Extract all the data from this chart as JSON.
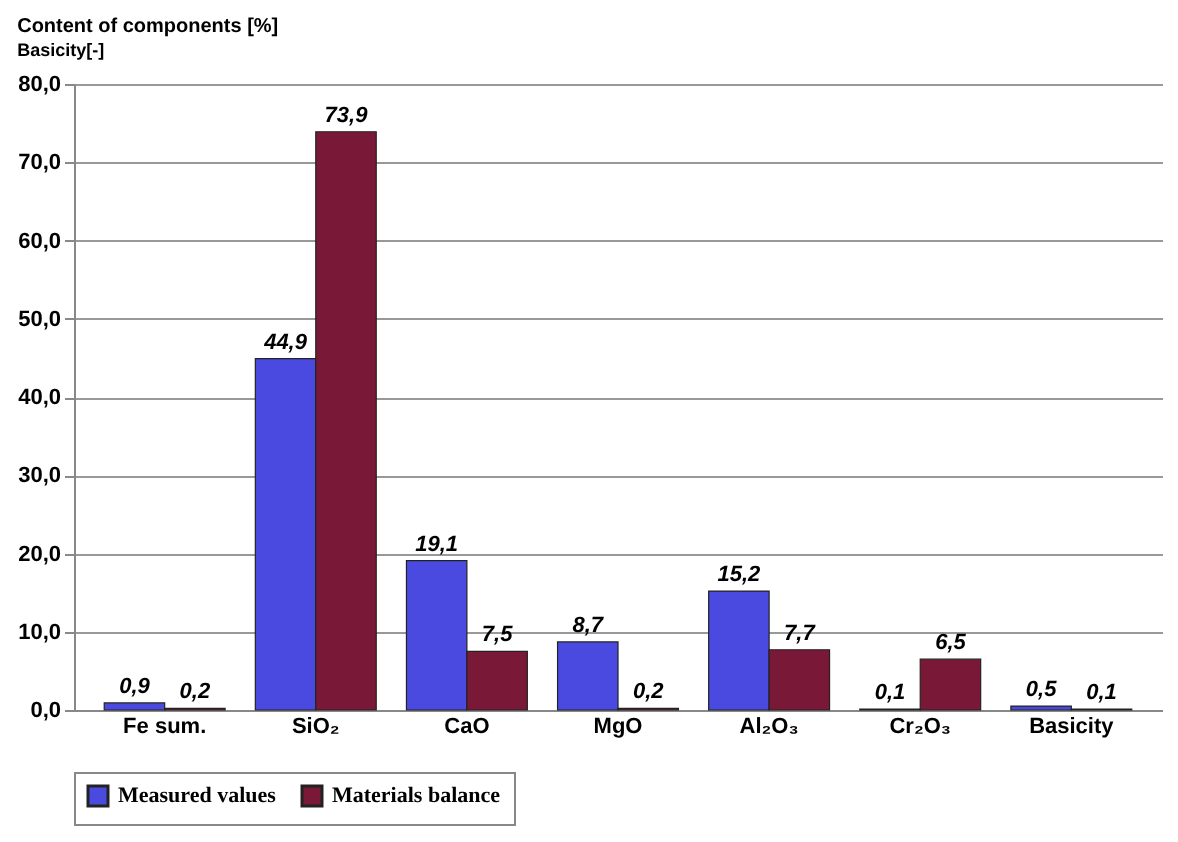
{
  "chart_data": {
    "type": "bar",
    "title": "Content of components [%]",
    "subtitle": "Basicity[-]",
    "categories": [
      "Fe sum.",
      "SiO₂",
      "CaO",
      "MgO",
      "Al₂O₃",
      "Cr₂O₃",
      "Basicity"
    ],
    "series": [
      {
        "name": "Measured values",
        "color": "#4a4ae0",
        "values": [
          0.9,
          44.9,
          19.1,
          8.7,
          15.2,
          0.1,
          0.5
        ],
        "value_labels": [
          "0,9",
          "44,9",
          "19,1",
          "8,7",
          "15,2",
          "0,1",
          "0,5"
        ]
      },
      {
        "name": "Materials balance",
        "color": "#7a1838",
        "values": [
          0.2,
          73.9,
          7.5,
          0.2,
          7.7,
          6.5,
          0.1
        ],
        "value_labels": [
          "0,2",
          "73,9",
          "7,5",
          "0,2",
          "7,7",
          "6,5",
          "0,1"
        ]
      }
    ],
    "ylim": [
      0,
      80
    ],
    "yticks": [
      {
        "value": 0,
        "label": "0,0"
      },
      {
        "value": 10,
        "label": "10,0"
      },
      {
        "value": 20,
        "label": "20,0"
      },
      {
        "value": 30,
        "label": "30,0"
      },
      {
        "value": 40,
        "label": "40,0"
      },
      {
        "value": 50,
        "label": "50,0"
      },
      {
        "value": 60,
        "label": "60,0"
      },
      {
        "value": 70,
        "label": "70,0"
      },
      {
        "value": 80,
        "label": "80,0"
      }
    ],
    "grid": "y",
    "legend": "bottom"
  }
}
